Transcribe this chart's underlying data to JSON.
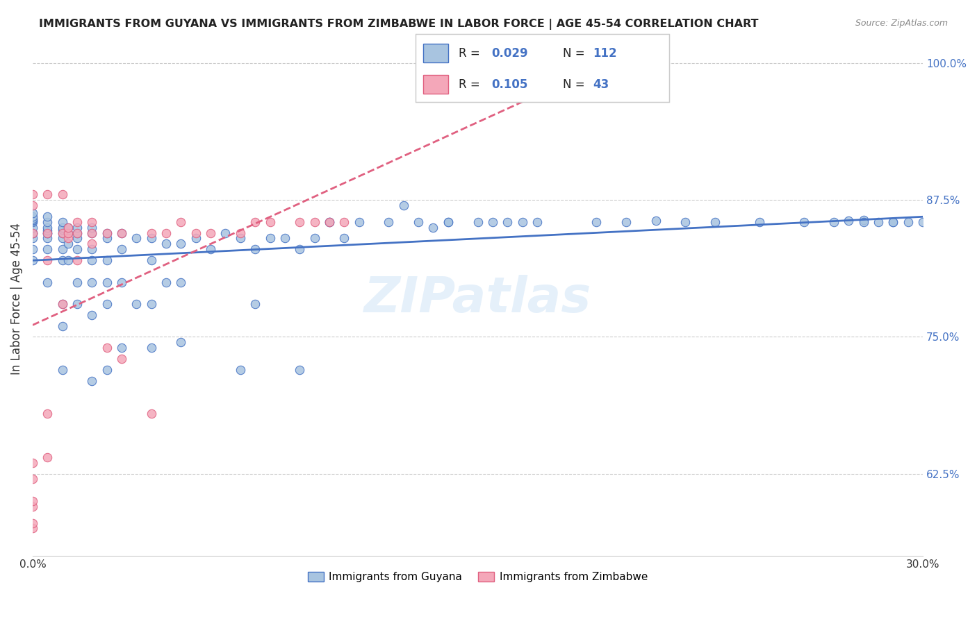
{
  "title": "IMMIGRANTS FROM GUYANA VS IMMIGRANTS FROM ZIMBABWE IN LABOR FORCE | AGE 45-54 CORRELATION CHART",
  "source": "Source: ZipAtlas.com",
  "xlabel": "",
  "ylabel": "In Labor Force | Age 45-54",
  "xlim": [
    0.0,
    0.3
  ],
  "ylim": [
    0.55,
    1.02
  ],
  "xticks": [
    0.0,
    0.05,
    0.1,
    0.15,
    0.2,
    0.25,
    0.3
  ],
  "xticklabels": [
    "0.0%",
    "",
    "",
    "",
    "",
    "",
    "30.0%"
  ],
  "yticks_right": [
    0.625,
    0.75,
    0.875,
    1.0
  ],
  "ytick_labels_right": [
    "62.5%",
    "75.0%",
    "87.5%",
    "100.0%"
  ],
  "guyana_color": "#a8c4e0",
  "zimbabwe_color": "#f4a7b9",
  "guyana_line_color": "#4472c4",
  "zimbabwe_line_color": "#e06080",
  "R_guyana": 0.029,
  "N_guyana": 112,
  "R_zimbabwe": 0.105,
  "N_zimbabwe": 43,
  "legend_labels": [
    "Immigrants from Guyana",
    "Immigrants from Zimbabwe"
  ],
  "watermark": "ZIPatlas",
  "background_color": "#ffffff",
  "guyana_x": [
    0.0,
    0.0,
    0.0,
    0.0,
    0.0,
    0.0,
    0.0,
    0.0,
    0.0,
    0.0,
    0.0,
    0.0,
    0.005,
    0.005,
    0.005,
    0.005,
    0.005,
    0.005,
    0.005,
    0.005,
    0.005,
    0.01,
    0.01,
    0.01,
    0.01,
    0.01,
    0.01,
    0.01,
    0.01,
    0.01,
    0.01,
    0.012,
    0.012,
    0.012,
    0.012,
    0.015,
    0.015,
    0.015,
    0.015,
    0.015,
    0.015,
    0.02,
    0.02,
    0.02,
    0.02,
    0.02,
    0.02,
    0.02,
    0.025,
    0.025,
    0.025,
    0.025,
    0.025,
    0.025,
    0.03,
    0.03,
    0.03,
    0.03,
    0.035,
    0.035,
    0.04,
    0.04,
    0.04,
    0.04,
    0.045,
    0.045,
    0.05,
    0.05,
    0.05,
    0.055,
    0.06,
    0.065,
    0.07,
    0.07,
    0.075,
    0.075,
    0.08,
    0.085,
    0.09,
    0.09,
    0.095,
    0.1,
    0.1,
    0.105,
    0.11,
    0.12,
    0.125,
    0.13,
    0.135,
    0.14,
    0.14,
    0.15,
    0.155,
    0.16,
    0.165,
    0.17,
    0.19,
    0.2,
    0.21,
    0.22,
    0.23,
    0.245,
    0.26,
    0.27,
    0.275,
    0.28,
    0.28,
    0.29,
    0.285,
    0.29,
    0.295,
    0.3
  ],
  "guyana_y": [
    0.82,
    0.83,
    0.84,
    0.845,
    0.845,
    0.85,
    0.855,
    0.856,
    0.857,
    0.858,
    0.86,
    0.863,
    0.8,
    0.83,
    0.84,
    0.845,
    0.845,
    0.847,
    0.85,
    0.855,
    0.86,
    0.72,
    0.76,
    0.78,
    0.82,
    0.83,
    0.84,
    0.845,
    0.848,
    0.85,
    0.855,
    0.82,
    0.835,
    0.845,
    0.85,
    0.78,
    0.8,
    0.83,
    0.84,
    0.845,
    0.85,
    0.71,
    0.77,
    0.8,
    0.82,
    0.83,
    0.845,
    0.85,
    0.72,
    0.78,
    0.8,
    0.82,
    0.84,
    0.845,
    0.74,
    0.8,
    0.83,
    0.845,
    0.78,
    0.84,
    0.74,
    0.78,
    0.82,
    0.84,
    0.8,
    0.835,
    0.745,
    0.8,
    0.835,
    0.84,
    0.83,
    0.845,
    0.72,
    0.84,
    0.78,
    0.83,
    0.84,
    0.84,
    0.72,
    0.83,
    0.84,
    0.855,
    0.855,
    0.84,
    0.855,
    0.855,
    0.87,
    0.855,
    0.85,
    0.855,
    0.855,
    0.855,
    0.855,
    0.855,
    0.855,
    0.855,
    0.855,
    0.855,
    0.856,
    0.855,
    0.855,
    0.855,
    0.855,
    0.855,
    0.856,
    0.857,
    0.855,
    0.855,
    0.855,
    0.855,
    0.855,
    0.855
  ],
  "zimbabwe_x": [
    0.0,
    0.0,
    0.0,
    0.0,
    0.0,
    0.0,
    0.0,
    0.0,
    0.0,
    0.005,
    0.005,
    0.005,
    0.005,
    0.005,
    0.01,
    0.01,
    0.01,
    0.012,
    0.012,
    0.012,
    0.015,
    0.015,
    0.015,
    0.02,
    0.02,
    0.02,
    0.025,
    0.025,
    0.03,
    0.03,
    0.04,
    0.04,
    0.045,
    0.05,
    0.055,
    0.06,
    0.07,
    0.075,
    0.08,
    0.09,
    0.095,
    0.1,
    0.105
  ],
  "zimbabwe_y": [
    0.575,
    0.58,
    0.595,
    0.6,
    0.62,
    0.635,
    0.845,
    0.87,
    0.88,
    0.64,
    0.68,
    0.82,
    0.845,
    0.88,
    0.78,
    0.845,
    0.88,
    0.84,
    0.845,
    0.85,
    0.82,
    0.845,
    0.855,
    0.835,
    0.845,
    0.855,
    0.74,
    0.845,
    0.73,
    0.845,
    0.68,
    0.845,
    0.845,
    0.855,
    0.845,
    0.845,
    0.845,
    0.855,
    0.855,
    0.855,
    0.855,
    0.855,
    0.855
  ]
}
